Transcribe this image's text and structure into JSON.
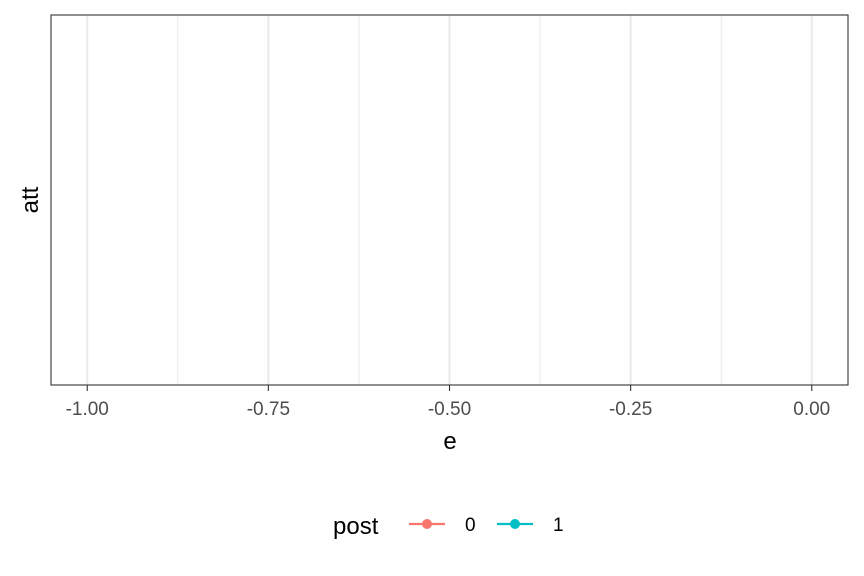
{
  "chart_data": {
    "type": "line",
    "title": "",
    "xlabel": "e",
    "ylabel": "att",
    "xlim": [
      -1.05,
      0.05
    ],
    "x_ticks": [
      -1.0,
      -0.75,
      -0.5,
      -0.25,
      0.0
    ],
    "x_tick_labels": [
      "-1.00",
      "-0.75",
      "-0.50",
      "-0.25",
      "0.00"
    ],
    "x_minor_ticks": [
      -0.875,
      -0.625,
      -0.375,
      -0.125
    ],
    "y_ticks": [],
    "grid": true,
    "legend": {
      "title": "post",
      "position": "bottom",
      "entries": [
        {
          "label": "0",
          "color": "#F8766D"
        },
        {
          "label": "1",
          "color": "#00BFC4"
        }
      ]
    },
    "series": [
      {
        "name": "0",
        "color": "#F8766D",
        "x": [],
        "y": []
      },
      {
        "name": "1",
        "color": "#00BFC4",
        "x": [],
        "y": []
      }
    ]
  }
}
